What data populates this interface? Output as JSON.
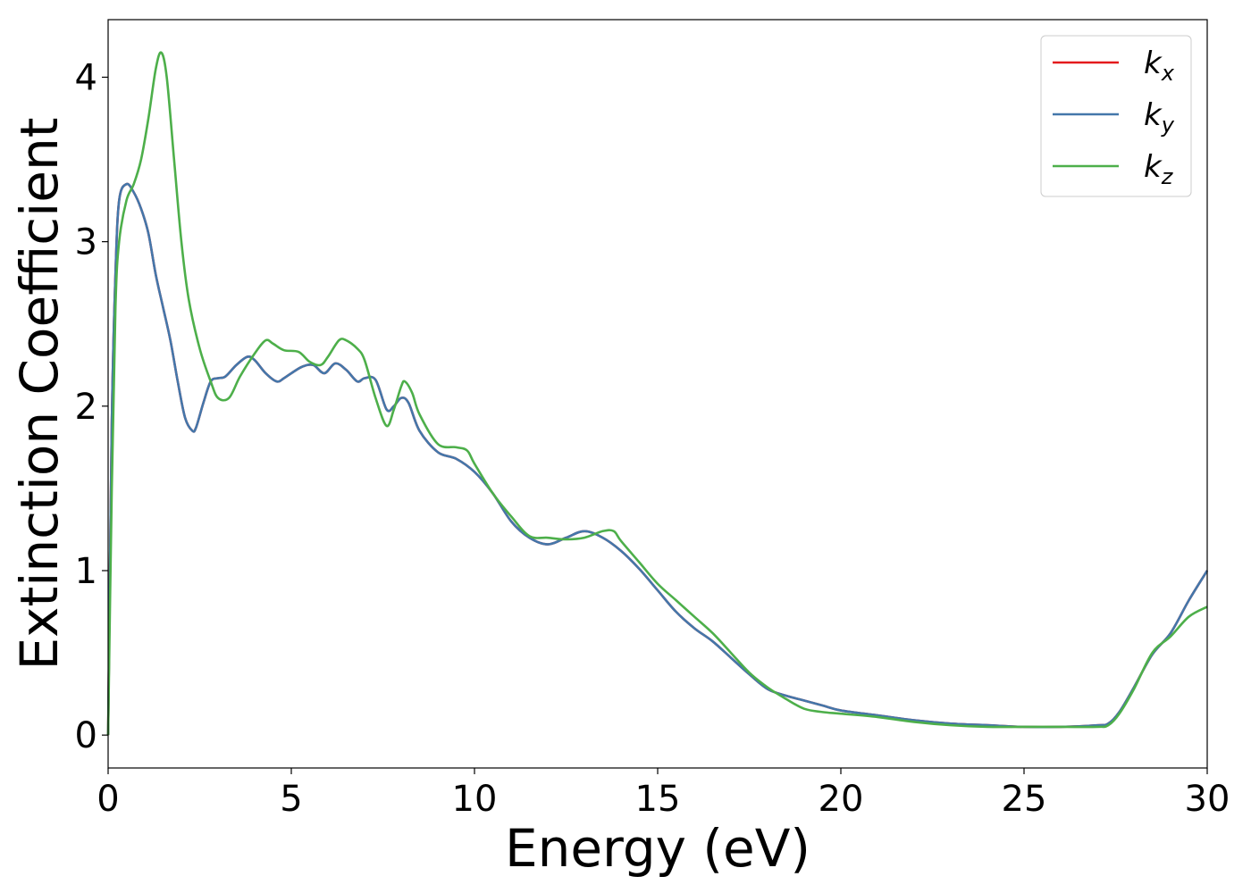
{
  "chart_data": {
    "type": "line",
    "xlabel": "Energy (eV)",
    "ylabel": "Extinction Coefficient",
    "xlim": [
      0,
      30
    ],
    "ylim": [
      -0.2,
      4.35
    ],
    "xticks": [
      0,
      5,
      10,
      15,
      20,
      25,
      30
    ],
    "yticks": [
      0,
      1,
      2,
      3,
      4
    ],
    "legend_position": "top-right",
    "grid": false,
    "series": [
      {
        "name": "k",
        "subscript": "x",
        "color": "#e41a1c",
        "x": [
          0,
          0.1,
          0.2,
          0.3,
          0.5,
          0.7,
          0.9,
          1.1,
          1.3,
          1.5,
          1.7,
          1.9,
          2.1,
          2.3,
          2.4,
          2.6,
          2.8,
          3.0,
          3.2,
          3.5,
          3.8,
          4.0,
          4.3,
          4.6,
          4.8,
          5.0,
          5.3,
          5.6,
          5.9,
          6.2,
          6.5,
          6.8,
          7.0,
          7.3,
          7.6,
          7.8,
          8.0,
          8.2,
          8.5,
          9.0,
          9.5,
          10.0,
          10.5,
          11.0,
          11.5,
          12.0,
          12.5,
          13.0,
          13.5,
          14.0,
          14.5,
          15.0,
          15.5,
          16.0,
          16.5,
          17.0,
          17.5,
          18.0,
          18.5,
          19.0,
          19.5,
          20.0,
          21.0,
          22.0,
          23.0,
          24.0,
          25.0,
          26.0,
          27.0,
          27.3,
          27.6,
          28.0,
          28.5,
          29.0,
          29.5,
          30.0
        ],
        "y": [
          0,
          1.9,
          2.8,
          3.25,
          3.35,
          3.3,
          3.2,
          3.05,
          2.8,
          2.6,
          2.4,
          2.15,
          1.93,
          1.85,
          1.87,
          2.02,
          2.15,
          2.17,
          2.18,
          2.25,
          2.3,
          2.28,
          2.2,
          2.15,
          2.17,
          2.2,
          2.24,
          2.25,
          2.2,
          2.26,
          2.22,
          2.15,
          2.17,
          2.16,
          1.98,
          2.0,
          2.05,
          2.02,
          1.85,
          1.72,
          1.68,
          1.6,
          1.47,
          1.3,
          1.2,
          1.16,
          1.2,
          1.24,
          1.2,
          1.12,
          1.01,
          0.88,
          0.75,
          0.65,
          0.57,
          0.47,
          0.37,
          0.28,
          0.24,
          0.21,
          0.18,
          0.15,
          0.12,
          0.09,
          0.07,
          0.06,
          0.05,
          0.05,
          0.06,
          0.07,
          0.14,
          0.29,
          0.49,
          0.62,
          0.82,
          1.0
        ]
      },
      {
        "name": "k",
        "subscript": "y",
        "color": "#4477aa",
        "x": [
          0,
          0.1,
          0.2,
          0.3,
          0.5,
          0.7,
          0.9,
          1.1,
          1.3,
          1.5,
          1.7,
          1.9,
          2.1,
          2.3,
          2.4,
          2.6,
          2.8,
          3.0,
          3.2,
          3.5,
          3.8,
          4.0,
          4.3,
          4.6,
          4.8,
          5.0,
          5.3,
          5.6,
          5.9,
          6.2,
          6.5,
          6.8,
          7.0,
          7.3,
          7.6,
          7.8,
          8.0,
          8.2,
          8.5,
          9.0,
          9.5,
          10.0,
          10.5,
          11.0,
          11.5,
          12.0,
          12.5,
          13.0,
          13.5,
          14.0,
          14.5,
          15.0,
          15.5,
          16.0,
          16.5,
          17.0,
          17.5,
          18.0,
          18.5,
          19.0,
          19.5,
          20.0,
          21.0,
          22.0,
          23.0,
          24.0,
          25.0,
          26.0,
          27.0,
          27.3,
          27.6,
          28.0,
          28.5,
          29.0,
          29.5,
          30.0
        ],
        "y": [
          0,
          1.9,
          2.8,
          3.25,
          3.35,
          3.3,
          3.2,
          3.05,
          2.8,
          2.6,
          2.4,
          2.15,
          1.93,
          1.85,
          1.87,
          2.02,
          2.15,
          2.17,
          2.18,
          2.25,
          2.3,
          2.28,
          2.2,
          2.15,
          2.17,
          2.2,
          2.24,
          2.25,
          2.2,
          2.26,
          2.22,
          2.15,
          2.17,
          2.16,
          1.98,
          2.0,
          2.05,
          2.02,
          1.85,
          1.72,
          1.68,
          1.6,
          1.47,
          1.3,
          1.2,
          1.16,
          1.2,
          1.24,
          1.2,
          1.12,
          1.01,
          0.88,
          0.75,
          0.65,
          0.57,
          0.47,
          0.37,
          0.28,
          0.24,
          0.21,
          0.18,
          0.15,
          0.12,
          0.09,
          0.07,
          0.06,
          0.05,
          0.05,
          0.06,
          0.07,
          0.14,
          0.29,
          0.49,
          0.62,
          0.82,
          1.0
        ]
      },
      {
        "name": "k",
        "subscript": "z",
        "color": "#4daf4a",
        "x": [
          0,
          0.1,
          0.2,
          0.3,
          0.5,
          0.7,
          0.9,
          1.1,
          1.3,
          1.45,
          1.6,
          1.8,
          2.0,
          2.2,
          2.5,
          2.8,
          3.0,
          3.3,
          3.6,
          4.0,
          4.3,
          4.5,
          4.8,
          5.2,
          5.5,
          5.8,
          6.0,
          6.3,
          6.5,
          6.8,
          7.0,
          7.3,
          7.6,
          7.8,
          8.0,
          8.1,
          8.3,
          8.5,
          9.0,
          9.5,
          9.8,
          10.0,
          10.5,
          11.0,
          11.5,
          12.0,
          12.5,
          13.0,
          13.5,
          13.8,
          14.0,
          14.5,
          15.0,
          15.5,
          16.0,
          16.5,
          17.0,
          17.5,
          18.0,
          18.5,
          19.0,
          19.5,
          20.0,
          21.0,
          22.0,
          23.0,
          24.0,
          25.0,
          26.0,
          27.0,
          27.3,
          27.6,
          28.0,
          28.5,
          29.0,
          29.5,
          30.0
        ],
        "y": [
          0,
          1.5,
          2.6,
          3.0,
          3.25,
          3.35,
          3.5,
          3.75,
          4.05,
          4.15,
          4.0,
          3.5,
          3.0,
          2.65,
          2.35,
          2.15,
          2.05,
          2.05,
          2.18,
          2.32,
          2.4,
          2.38,
          2.34,
          2.33,
          2.27,
          2.25,
          2.3,
          2.4,
          2.4,
          2.35,
          2.28,
          2.05,
          1.88,
          1.98,
          2.12,
          2.15,
          2.08,
          1.95,
          1.77,
          1.75,
          1.73,
          1.65,
          1.47,
          1.33,
          1.21,
          1.2,
          1.19,
          1.2,
          1.24,
          1.24,
          1.18,
          1.05,
          0.92,
          0.82,
          0.72,
          0.62,
          0.5,
          0.38,
          0.29,
          0.22,
          0.16,
          0.14,
          0.13,
          0.11,
          0.08,
          0.06,
          0.05,
          0.05,
          0.05,
          0.05,
          0.06,
          0.13,
          0.28,
          0.5,
          0.6,
          0.72,
          0.78
        ]
      }
    ]
  }
}
